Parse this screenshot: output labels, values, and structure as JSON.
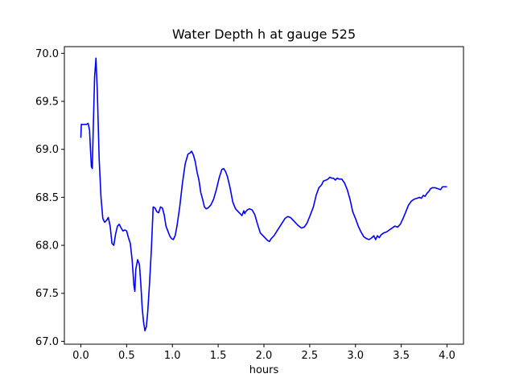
{
  "chart_data": {
    "type": "line",
    "title": "Water Depth h at gauge 525",
    "xlabel": "hours",
    "ylabel": "",
    "xlim": [
      -0.18,
      4.18
    ],
    "ylim": [
      66.97,
      70.07
    ],
    "xticks": [
      0.0,
      0.5,
      1.0,
      1.5,
      2.0,
      2.5,
      3.0,
      3.5,
      4.0
    ],
    "xtick_labels": [
      "0.0",
      "0.5",
      "1.0",
      "1.5",
      "2.0",
      "2.5",
      "3.0",
      "3.5",
      "4.0"
    ],
    "yticks": [
      67.0,
      67.5,
      68.0,
      68.5,
      69.0,
      69.5,
      70.0
    ],
    "ytick_labels": [
      "67.0",
      "67.5",
      "68.0",
      "68.5",
      "69.0",
      "69.5",
      "70.0"
    ],
    "grid": false,
    "legend": "none",
    "series": [
      {
        "color": "#0000ff",
        "points": [
          [
            0.0,
            69.12
          ],
          [
            0.005,
            69.26
          ],
          [
            0.03,
            69.26
          ],
          [
            0.06,
            69.26
          ],
          [
            0.08,
            69.27
          ],
          [
            0.095,
            69.2
          ],
          [
            0.105,
            69.0
          ],
          [
            0.115,
            68.82
          ],
          [
            0.125,
            68.8
          ],
          [
            0.135,
            69.2
          ],
          [
            0.15,
            69.75
          ],
          [
            0.165,
            69.95
          ],
          [
            0.18,
            69.6
          ],
          [
            0.2,
            68.9
          ],
          [
            0.22,
            68.5
          ],
          [
            0.24,
            68.28
          ],
          [
            0.26,
            68.24
          ],
          [
            0.28,
            68.26
          ],
          [
            0.3,
            68.29
          ],
          [
            0.32,
            68.2
          ],
          [
            0.34,
            68.02
          ],
          [
            0.36,
            68.0
          ],
          [
            0.38,
            68.12
          ],
          [
            0.4,
            68.2
          ],
          [
            0.42,
            68.22
          ],
          [
            0.44,
            68.18
          ],
          [
            0.46,
            68.15
          ],
          [
            0.48,
            68.16
          ],
          [
            0.5,
            68.15
          ],
          [
            0.52,
            68.08
          ],
          [
            0.54,
            68.02
          ],
          [
            0.56,
            67.85
          ],
          [
            0.58,
            67.58
          ],
          [
            0.59,
            67.52
          ],
          [
            0.6,
            67.75
          ],
          [
            0.62,
            67.85
          ],
          [
            0.64,
            67.8
          ],
          [
            0.655,
            67.6
          ],
          [
            0.67,
            67.35
          ],
          [
            0.685,
            67.2
          ],
          [
            0.7,
            67.11
          ],
          [
            0.715,
            67.15
          ],
          [
            0.73,
            67.3
          ],
          [
            0.75,
            67.6
          ],
          [
            0.77,
            67.95
          ],
          [
            0.79,
            68.4
          ],
          [
            0.81,
            68.39
          ],
          [
            0.83,
            68.35
          ],
          [
            0.85,
            68.34
          ],
          [
            0.87,
            68.4
          ],
          [
            0.89,
            68.39
          ],
          [
            0.91,
            68.32
          ],
          [
            0.93,
            68.2
          ],
          [
            0.95,
            68.15
          ],
          [
            0.97,
            68.1
          ],
          [
            0.99,
            68.07
          ],
          [
            1.01,
            68.06
          ],
          [
            1.03,
            68.1
          ],
          [
            1.05,
            68.2
          ],
          [
            1.08,
            68.4
          ],
          [
            1.11,
            68.65
          ],
          [
            1.14,
            68.85
          ],
          [
            1.17,
            68.95
          ],
          [
            1.19,
            68.96
          ],
          [
            1.21,
            68.98
          ],
          [
            1.23,
            68.94
          ],
          [
            1.25,
            68.87
          ],
          [
            1.27,
            68.76
          ],
          [
            1.29,
            68.68
          ],
          [
            1.31,
            68.55
          ],
          [
            1.33,
            68.48
          ],
          [
            1.35,
            68.4
          ],
          [
            1.37,
            68.38
          ],
          [
            1.39,
            68.39
          ],
          [
            1.42,
            68.42
          ],
          [
            1.45,
            68.48
          ],
          [
            1.48,
            68.58
          ],
          [
            1.51,
            68.7
          ],
          [
            1.54,
            68.79
          ],
          [
            1.56,
            68.8
          ],
          [
            1.58,
            68.77
          ],
          [
            1.6,
            68.72
          ],
          [
            1.63,
            68.6
          ],
          [
            1.66,
            68.45
          ],
          [
            1.69,
            68.38
          ],
          [
            1.72,
            68.35
          ],
          [
            1.74,
            68.33
          ],
          [
            1.76,
            68.31
          ],
          [
            1.78,
            68.36
          ],
          [
            1.79,
            68.33
          ],
          [
            1.8,
            68.35
          ],
          [
            1.82,
            68.37
          ],
          [
            1.84,
            68.38
          ],
          [
            1.87,
            68.37
          ],
          [
            1.9,
            68.32
          ],
          [
            1.93,
            68.22
          ],
          [
            1.96,
            68.13
          ],
          [
            2.0,
            68.09
          ],
          [
            2.04,
            68.05
          ],
          [
            2.06,
            68.04
          ],
          [
            2.08,
            68.07
          ],
          [
            2.11,
            68.1
          ],
          [
            2.15,
            68.16
          ],
          [
            2.19,
            68.22
          ],
          [
            2.23,
            68.28
          ],
          [
            2.26,
            68.3
          ],
          [
            2.29,
            68.29
          ],
          [
            2.33,
            68.25
          ],
          [
            2.37,
            68.21
          ],
          [
            2.41,
            68.18
          ],
          [
            2.44,
            68.19
          ],
          [
            2.47,
            68.23
          ],
          [
            2.5,
            68.3
          ],
          [
            2.54,
            68.4
          ],
          [
            2.57,
            68.52
          ],
          [
            2.6,
            68.6
          ],
          [
            2.63,
            68.63
          ],
          [
            2.65,
            68.67
          ],
          [
            2.68,
            68.68
          ],
          [
            2.7,
            68.69
          ],
          [
            2.72,
            68.71
          ],
          [
            2.74,
            68.7
          ],
          [
            2.76,
            68.7
          ],
          [
            2.78,
            68.68
          ],
          [
            2.8,
            68.7
          ],
          [
            2.82,
            68.69
          ],
          [
            2.85,
            68.69
          ],
          [
            2.88,
            68.65
          ],
          [
            2.91,
            68.58
          ],
          [
            2.94,
            68.48
          ],
          [
            2.97,
            68.35
          ],
          [
            3.0,
            68.28
          ],
          [
            3.03,
            68.2
          ],
          [
            3.06,
            68.14
          ],
          [
            3.09,
            68.09
          ],
          [
            3.12,
            68.07
          ],
          [
            3.15,
            68.06
          ],
          [
            3.18,
            68.08
          ],
          [
            3.2,
            68.1
          ],
          [
            3.22,
            68.06
          ],
          [
            3.24,
            68.1
          ],
          [
            3.26,
            68.08
          ],
          [
            3.28,
            68.11
          ],
          [
            3.31,
            68.13
          ],
          [
            3.34,
            68.14
          ],
          [
            3.37,
            68.16
          ],
          [
            3.4,
            68.18
          ],
          [
            3.43,
            68.2
          ],
          [
            3.46,
            68.19
          ],
          [
            3.49,
            68.22
          ],
          [
            3.52,
            68.28
          ],
          [
            3.55,
            68.35
          ],
          [
            3.58,
            68.42
          ],
          [
            3.61,
            68.46
          ],
          [
            3.64,
            68.48
          ],
          [
            3.67,
            68.49
          ],
          [
            3.7,
            68.5
          ],
          [
            3.72,
            68.49
          ],
          [
            3.74,
            68.52
          ],
          [
            3.76,
            68.51
          ],
          [
            3.78,
            68.54
          ],
          [
            3.8,
            68.56
          ],
          [
            3.82,
            68.59
          ],
          [
            3.84,
            68.6
          ],
          [
            3.87,
            68.6
          ],
          [
            3.9,
            68.59
          ],
          [
            3.93,
            68.58
          ],
          [
            3.95,
            68.61
          ],
          [
            3.98,
            68.61
          ],
          [
            4.0,
            68.61
          ]
        ]
      }
    ]
  }
}
